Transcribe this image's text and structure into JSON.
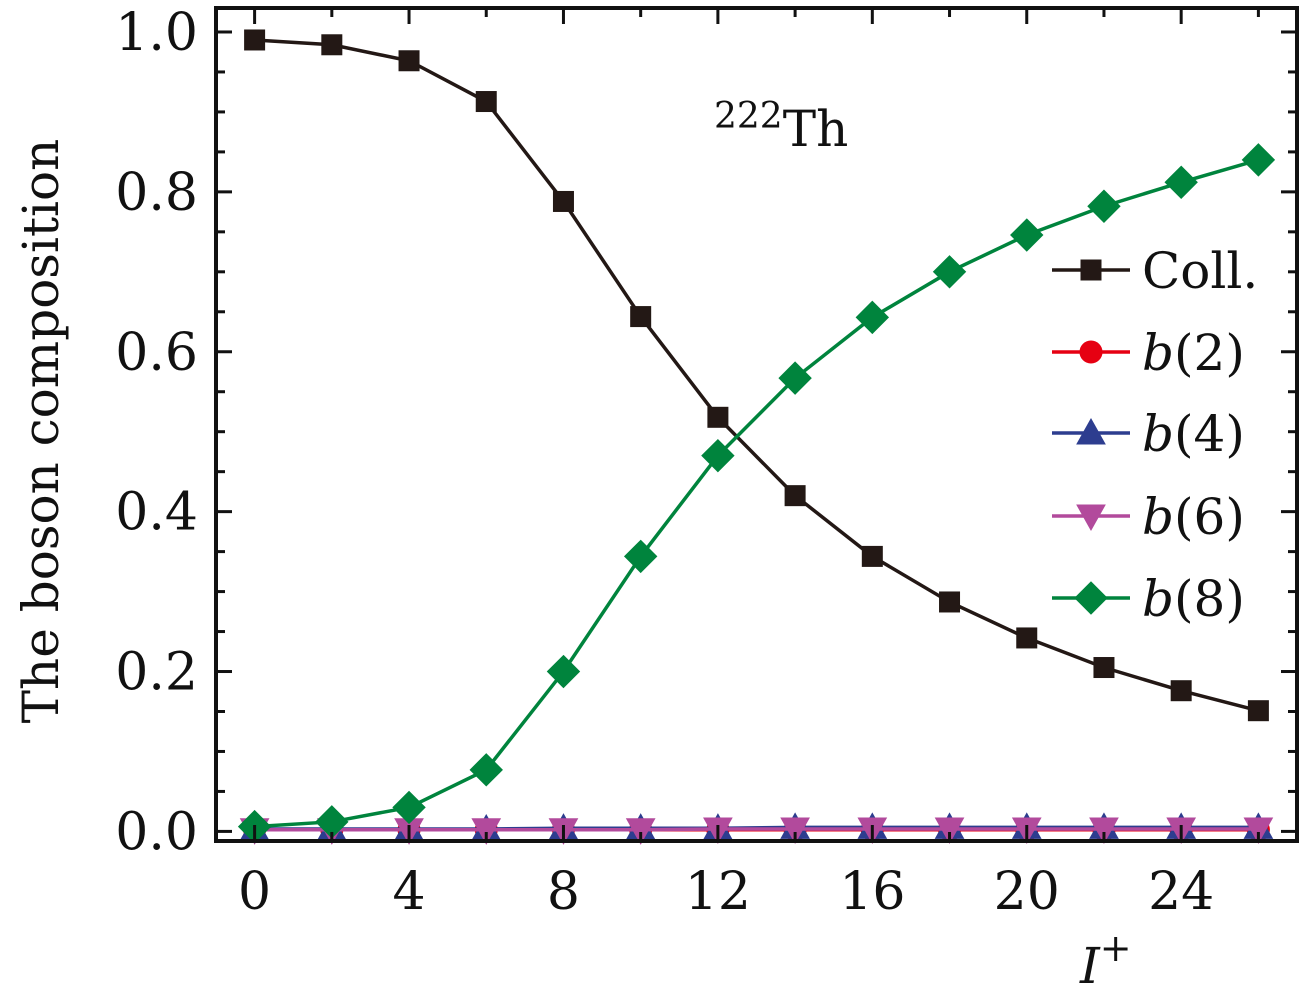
{
  "chart_data": {
    "type": "line",
    "annotation": {
      "sup": "222",
      "text": "Th"
    },
    "xlabel": {
      "base": "I",
      "sup": "+"
    },
    "ylabel": "The boson composition",
    "xlim": [
      -1,
      27
    ],
    "ylim": [
      -0.012,
      1.03
    ],
    "xticks": [
      "0",
      "4",
      "8",
      "12",
      "16",
      "20",
      "24"
    ],
    "yticks": [
      "0.0",
      "0.2",
      "0.4",
      "0.6",
      "0.8",
      "1.0"
    ],
    "legend_position": "right",
    "x": [
      0,
      2,
      4,
      6,
      8,
      10,
      12,
      14,
      16,
      18,
      20,
      22,
      24,
      26
    ],
    "series": [
      {
        "name": "Coll.",
        "label_italic": "",
        "label_rest": "Coll.",
        "color": "#231815",
        "marker": "square",
        "values": [
          0.99,
          0.984,
          0.964,
          0.913,
          0.788,
          0.644,
          0.518,
          0.42,
          0.344,
          0.287,
          0.242,
          0.205,
          0.176,
          0.151
        ]
      },
      {
        "name": "b(2)",
        "label_italic": "b",
        "label_rest": "(2)",
        "color": "#e60012",
        "marker": "circle",
        "values": [
          0.002,
          0.002,
          0.002,
          0.002,
          0.002,
          0.002,
          0.002,
          0.002,
          0.002,
          0.002,
          0.002,
          0.002,
          0.002,
          0.002
        ]
      },
      {
        "name": "b(4)",
        "label_italic": "b",
        "label_rest": "(4)",
        "color": "#2d3d8f",
        "marker": "triangle-up",
        "values": [
          0.003,
          0.003,
          0.003,
          0.003,
          0.004,
          0.004,
          0.004,
          0.005,
          0.005,
          0.005,
          0.005,
          0.005,
          0.005,
          0.005
        ]
      },
      {
        "name": "b(6)",
        "label_italic": "b",
        "label_rest": "(6)",
        "color": "#b24a9c",
        "marker": "triangle-down",
        "values": [
          0.002,
          0.002,
          0.002,
          0.002,
          0.002,
          0.002,
          0.003,
          0.003,
          0.003,
          0.003,
          0.003,
          0.003,
          0.003,
          0.003
        ]
      },
      {
        "name": "b(8)",
        "label_italic": "b",
        "label_rest": "(8)",
        "color": "#00843d",
        "marker": "diamond",
        "values": [
          0.006,
          0.012,
          0.03,
          0.077,
          0.2,
          0.344,
          0.47,
          0.567,
          0.643,
          0.7,
          0.746,
          0.782,
          0.812,
          0.84
        ]
      }
    ]
  }
}
